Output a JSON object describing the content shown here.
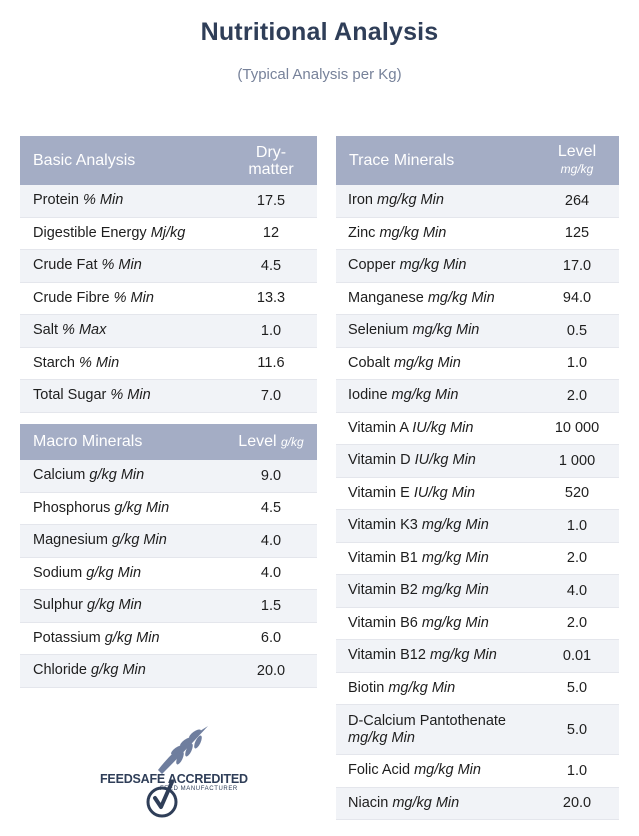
{
  "title": "Nutritional Analysis",
  "subtitle": "(Typical Analysis per Kg)",
  "basic": {
    "header": {
      "name": "Basic Analysis",
      "level": "Dry-matter"
    },
    "rows": [
      {
        "name": "Protein",
        "unit": "% Min",
        "value": "17.5"
      },
      {
        "name": "Digestible Energy",
        "unit": "Mj/kg",
        "value": "12"
      },
      {
        "name": "Crude Fat",
        "unit": "% Min",
        "value": "4.5"
      },
      {
        "name": "Crude Fibre",
        "unit": "% Min",
        "value": "13.3"
      },
      {
        "name": "Salt",
        "unit": "% Max",
        "value": "1.0"
      },
      {
        "name": "Starch",
        "unit": "% Min",
        "value": "11.6"
      },
      {
        "name": "Total Sugar",
        "unit": "% Min",
        "value": "7.0"
      }
    ]
  },
  "macro": {
    "header": {
      "name": "Macro Minerals",
      "level": "Level",
      "unit": "g/kg"
    },
    "rows": [
      {
        "name": "Calcium",
        "unit": "g/kg Min",
        "value": "9.0"
      },
      {
        "name": "Phosphorus",
        "unit": "g/kg Min",
        "value": "4.5"
      },
      {
        "name": "Magnesium",
        "unit": "g/kg Min",
        "value": "4.0"
      },
      {
        "name": "Sodium",
        "unit": "g/kg Min",
        "value": "4.0"
      },
      {
        "name": "Sulphur",
        "unit": "g/kg Min",
        "value": "1.5"
      },
      {
        "name": "Potassium",
        "unit": "g/kg Min",
        "value": "6.0"
      },
      {
        "name": "Chloride",
        "unit": "g/kg Min",
        "value": "20.0"
      }
    ]
  },
  "trace": {
    "header": {
      "name": "Trace Minerals",
      "level": "Level",
      "unit": "mg/kg"
    },
    "rows": [
      {
        "name": "Iron",
        "unit": "mg/kg Min",
        "value": "264"
      },
      {
        "name": "Zinc",
        "unit": "mg/kg Min",
        "value": "125"
      },
      {
        "name": "Copper",
        "unit": "mg/kg Min",
        "value": "17.0"
      },
      {
        "name": "Manganese",
        "unit": "mg/kg Min",
        "value": "94.0"
      },
      {
        "name": "Selenium",
        "unit": "mg/kg Min",
        "value": "0.5"
      },
      {
        "name": "Cobalt",
        "unit": "mg/kg Min",
        "value": "1.0"
      },
      {
        "name": "Iodine",
        "unit": "mg/kg Min",
        "value": "2.0"
      },
      {
        "name": "Vitamin A",
        "unit": "IU/kg Min",
        "value": "10 000"
      },
      {
        "name": "Vitamin D",
        "unit": "IU/kg Min",
        "value": "1 000"
      },
      {
        "name": "Vitamin E",
        "unit": "IU/kg Min",
        "value": "520"
      },
      {
        "name": "Vitamin K3",
        "unit": "mg/kg Min",
        "value": "1.0"
      },
      {
        "name": "Vitamin B1",
        "unit": "mg/kg Min",
        "value": "2.0"
      },
      {
        "name": "Vitamin B2",
        "unit": "mg/kg Min",
        "value": "4.0"
      },
      {
        "name": "Vitamin B6",
        "unit": "mg/kg Min",
        "value": "2.0"
      },
      {
        "name": "Vitamin B12",
        "unit": "mg/kg Min",
        "value": "0.01"
      },
      {
        "name": "Biotin",
        "unit": "mg/kg Min",
        "value": "5.0"
      },
      {
        "name": "D-Calcium Pantothenate",
        "unit": "mg/kg Min",
        "value": "5.0",
        "tall": true
      },
      {
        "name": "Folic Acid",
        "unit": "mg/kg Min",
        "value": "1.0"
      },
      {
        "name": "Niacin",
        "unit": "mg/kg Min",
        "value": "20.0"
      }
    ]
  },
  "logo": {
    "text": "FEEDSAFE ACCREDITED",
    "subtext": "FEED MANUFACTURER",
    "icon": "wheat-check-icon"
  },
  "colors": {
    "header_bg": "#a4adc5",
    "title": "#2f3e58",
    "row_alt": "#f1f3f7"
  }
}
